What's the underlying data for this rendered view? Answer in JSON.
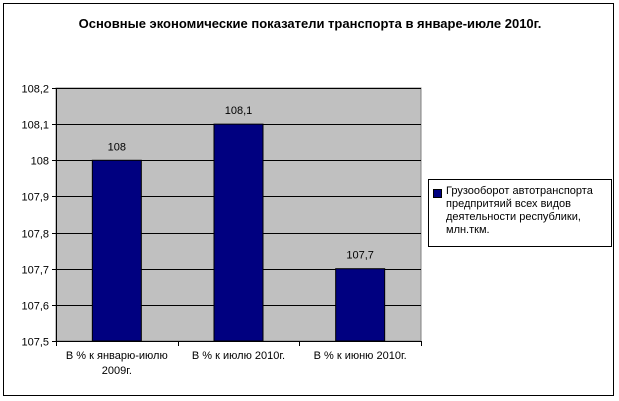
{
  "chart_data": {
    "type": "bar",
    "title": "Основные экономические показатели транспорта в январе-июле 2010г.",
    "categories": [
      "В % к январю-июлю 2009г.",
      "В % к июлю 2010г.",
      "В % к июню 2010г."
    ],
    "series": [
      {
        "name": "Грузооборот автотранспорта предпритяий всех видов деятельности республики, млн.ткм.",
        "values": [
          108,
          108.1,
          107.7
        ],
        "color": "#000080"
      }
    ],
    "data_labels": [
      "108",
      "108,1",
      "107,7"
    ],
    "yticks": [
      "107,5",
      "107,6",
      "107,7",
      "107,8",
      "107,9",
      "108",
      "108,1",
      "108,2"
    ],
    "ylim": [
      107.5,
      108.2
    ],
    "grid": true,
    "legend_position": "right",
    "plot_background": "#c0c0c0",
    "xlabel": "",
    "ylabel": ""
  }
}
